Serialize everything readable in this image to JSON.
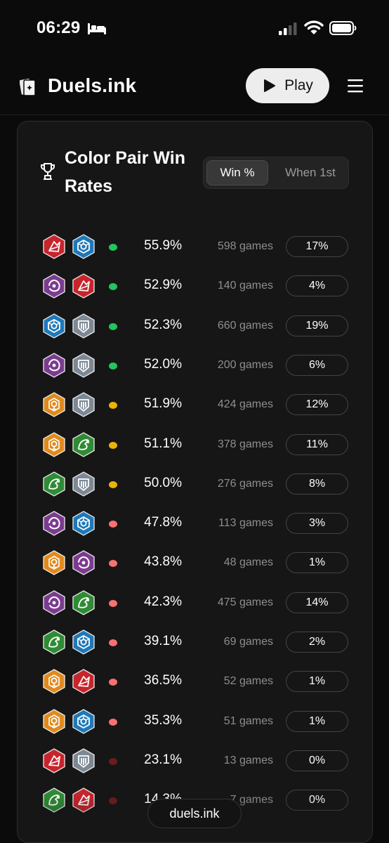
{
  "status": {
    "time": "06:29"
  },
  "header": {
    "brand": "Duels.ink",
    "play_label": "Play"
  },
  "card": {
    "title": "Color Pair Win Rates",
    "tabs": {
      "win": "Win %",
      "first": "When 1st"
    }
  },
  "colors": {
    "red": "#c8242c",
    "blue": "#1f78b8",
    "purple": "#7b3c8f",
    "steel": "#7c8894",
    "amber": "#e08a1e",
    "green": "#2f8b35",
    "dot_green": "#22c55e",
    "dot_yellow": "#eab308",
    "dot_red": "#f87171",
    "dot_dark": "#6b1c1c"
  },
  "rows": [
    {
      "c1": "red",
      "c2": "blue",
      "dot": "green",
      "win": "55.9%",
      "games": "598 games",
      "pct": "17%"
    },
    {
      "c1": "purple",
      "c2": "red",
      "dot": "green",
      "win": "52.9%",
      "games": "140 games",
      "pct": "4%"
    },
    {
      "c1": "blue",
      "c2": "steel",
      "dot": "green",
      "win": "52.3%",
      "games": "660 games",
      "pct": "19%"
    },
    {
      "c1": "purple",
      "c2": "steel",
      "dot": "green",
      "win": "52.0%",
      "games": "200 games",
      "pct": "6%"
    },
    {
      "c1": "amber",
      "c2": "steel",
      "dot": "yellow",
      "win": "51.9%",
      "games": "424 games",
      "pct": "12%"
    },
    {
      "c1": "amber",
      "c2": "green",
      "dot": "yellow",
      "win": "51.1%",
      "games": "378 games",
      "pct": "11%"
    },
    {
      "c1": "green",
      "c2": "steel",
      "dot": "yellow",
      "win": "50.0%",
      "games": "276 games",
      "pct": "8%"
    },
    {
      "c1": "purple",
      "c2": "blue",
      "dot": "red",
      "win": "47.8%",
      "games": "113 games",
      "pct": "3%"
    },
    {
      "c1": "amber",
      "c2": "purple",
      "dot": "red",
      "win": "43.8%",
      "games": "48 games",
      "pct": "1%"
    },
    {
      "c1": "purple",
      "c2": "green",
      "dot": "red",
      "win": "42.3%",
      "games": "475 games",
      "pct": "14%"
    },
    {
      "c1": "green",
      "c2": "blue",
      "dot": "red",
      "win": "39.1%",
      "games": "69 games",
      "pct": "2%"
    },
    {
      "c1": "amber",
      "c2": "red",
      "dot": "red",
      "win": "36.5%",
      "games": "52 games",
      "pct": "1%"
    },
    {
      "c1": "amber",
      "c2": "blue",
      "dot": "red",
      "win": "35.3%",
      "games": "51 games",
      "pct": "1%"
    },
    {
      "c1": "red",
      "c2": "steel",
      "dot": "dark",
      "win": "23.1%",
      "games": "13 games",
      "pct": "0%"
    },
    {
      "c1": "green",
      "c2": "red",
      "dot": "dark",
      "win": "14.3%",
      "games": "7 games",
      "pct": "0%"
    }
  ],
  "footer": {
    "site": "duels.ink"
  }
}
